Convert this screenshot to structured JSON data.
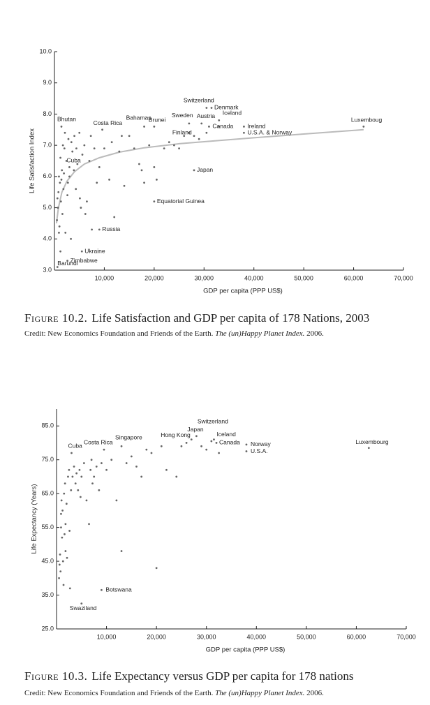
{
  "chart_data": [
    {
      "type": "scatter",
      "x_label": "GDP per capita (PPP US$)",
      "y_label": "Life Satisfaction Index",
      "caption_label": "Figure 10.2.",
      "caption": "Life Satisfaction and GDP per capita of 178 Nations, 2003",
      "credit": [
        "Credit: New Economics Foundation and Friends of the Earth. ",
        "The (un)Happy Planet Index.",
        " 2006."
      ],
      "xlim": [
        0,
        70000
      ],
      "ylim": [
        3,
        10
      ],
      "xticks": [
        {
          "value": 10000,
          "label": "10,000"
        },
        {
          "value": 20000,
          "label": "20,000"
        },
        {
          "value": 30000,
          "label": "30,000"
        },
        {
          "value": 40000,
          "label": "40,000"
        },
        {
          "value": 50000,
          "label": "50,000"
        },
        {
          "value": 60000,
          "label": "60,000"
        },
        {
          "value": 70000,
          "label": "70,000"
        }
      ],
      "yticks": [
        {
          "value": 3,
          "label": "3.0"
        },
        {
          "value": 4,
          "label": "4.0"
        },
        {
          "value": 5,
          "label": "5.0"
        },
        {
          "value": 6,
          "label": "6.0"
        },
        {
          "value": 7,
          "label": "7.0"
        },
        {
          "value": 8,
          "label": "8.0"
        },
        {
          "value": 9,
          "label": "9.0"
        },
        {
          "value": 10,
          "label": "10.0"
        }
      ],
      "color": "#666",
      "labeled_points": {
        "x": [
          1400,
          9600,
          18000,
          20000,
          30500,
          31500,
          27000,
          29500,
          33000,
          27000,
          31000,
          38000,
          38000,
          62000,
          3000,
          28000,
          20000,
          9000,
          5500,
          2600,
          600
        ],
        "y": [
          7.6,
          7.5,
          7.6,
          7.6,
          8.2,
          8.2,
          7.7,
          7.7,
          7.8,
          7.4,
          7.6,
          7.6,
          7.4,
          7.6,
          6.3,
          6.2,
          5.2,
          4.3,
          3.6,
          3.3,
          3.1
        ],
        "labels": [
          "Bhutan",
          "Costa Rica",
          "Bahamas",
          "Brunei",
          "Switzerland",
          "Denmark",
          "Sweden",
          "Austria",
          "Iceland",
          "Finland",
          "Canada",
          "Ireland",
          "U.S.A. & Norway",
          "Luxemboug",
          "Cuba",
          "Japan",
          "Equatorial Guinea",
          "Russia",
          "Ukraine",
          "Zimbabwe",
          "Barundi"
        ]
      },
      "points": {
        "x": [
          500,
          700,
          800,
          900,
          1000,
          1100,
          1200,
          1300,
          1500,
          1600,
          1700,
          1800,
          2000,
          2200,
          2400,
          2600,
          2800,
          3000,
          3300,
          3600,
          4000,
          4300,
          4600,
          5000,
          5300,
          5600,
          6000,
          6500,
          7000,
          7500,
          8000,
          8500,
          9000,
          10000,
          11000,
          12000,
          13000,
          14000,
          15000,
          16000,
          17000,
          18000,
          19000,
          20000,
          22000,
          24000,
          25000,
          28000,
          29000,
          33000,
          600,
          900,
          1200,
          1400,
          1900,
          2100,
          2700,
          3400,
          3900,
          4400,
          5100,
          6200,
          7300,
          11500,
          13500,
          17500,
          20500,
          23000,
          26000,
          30500
        ],
        "y": [
          4.6,
          5.0,
          5.5,
          6.0,
          4.4,
          5.8,
          6.6,
          5.2,
          6.2,
          4.8,
          7.0,
          5.6,
          6.9,
          4.2,
          6.5,
          5.4,
          7.2,
          6.0,
          4.0,
          6.8,
          7.3,
          5.6,
          6.4,
          7.4,
          5.0,
          6.7,
          7.0,
          5.2,
          6.5,
          4.3,
          6.9,
          5.8,
          6.3,
          6.9,
          5.9,
          4.7,
          6.8,
          5.7,
          7.3,
          6.9,
          6.4,
          5.8,
          7.0,
          6.3,
          6.9,
          7.0,
          6.9,
          7.3,
          7.2,
          7.6,
          5.3,
          4.2,
          3.6,
          5.9,
          6.1,
          7.4,
          5.8,
          7.1,
          6.2,
          6.9,
          5.3,
          4.8,
          7.3,
          7.1,
          7.3,
          6.2,
          5.9,
          7.1,
          7.3,
          7.4
        ]
      },
      "fit_line": {
        "color": "#bbbbbb",
        "x": [
          400,
          800,
          1500,
          2500,
          4000,
          6000,
          9000,
          13000,
          18000,
          25000,
          32000,
          40000,
          50000,
          62000
        ],
        "y": [
          4.5,
          5.0,
          5.5,
          5.85,
          6.15,
          6.4,
          6.6,
          6.78,
          6.92,
          7.05,
          7.14,
          7.24,
          7.36,
          7.5
        ]
      }
    },
    {
      "type": "scatter",
      "x_label": "GDP per capita (PPP US$)",
      "y_label": "Life Expectancy (Years)",
      "caption_label": "Figure 10.3.",
      "caption": "Life Expectancy versus GDP per capita for 178 nations",
      "credit": [
        "Credit: New Economics Foundation and Friends of the Earth. ",
        "The (un)Happy Planet Index.",
        " 2006."
      ],
      "xlim": [
        0,
        70000
      ],
      "ylim": [
        25,
        90
      ],
      "xticks": [
        {
          "value": 10000,
          "label": "10,000"
        },
        {
          "value": 20000,
          "label": "20,000"
        },
        {
          "value": 30000,
          "label": "30,000"
        },
        {
          "value": 40000,
          "label": "40,000"
        },
        {
          "value": 50000,
          "label": "50,000"
        },
        {
          "value": 60000,
          "label": "60,000"
        },
        {
          "value": 70000,
          "label": "70,000"
        }
      ],
      "yticks": [
        {
          "value": 25,
          "label": "25.0"
        },
        {
          "value": 35,
          "label": "35.0"
        },
        {
          "value": 45,
          "label": "45.0"
        },
        {
          "value": 55,
          "label": "55.0"
        },
        {
          "value": 65,
          "label": "65.0"
        },
        {
          "value": 75,
          "label": "75.0"
        },
        {
          "value": 85,
          "label": "85.0"
        }
      ],
      "color": "#666",
      "labeled_points": {
        "x": [
          3000,
          9500,
          13000,
          27000,
          28000,
          31000,
          31500,
          32000,
          38000,
          38000,
          62500,
          9000,
          5000
        ],
        "y": [
          77,
          78,
          79,
          81,
          82,
          80.5,
          81,
          80,
          79.5,
          77.5,
          78.5,
          36.5,
          32.5
        ],
        "labels": [
          "Cuba",
          "Costa Rica",
          "Singapore",
          "Hong Kong",
          "Japan",
          "Switzerland",
          "Iceland",
          "Canada",
          "Norway",
          "U.S.A.",
          "Luxembourg",
          "Botswana",
          "Swaziland"
        ]
      },
      "points": {
        "x": [
          500,
          600,
          700,
          800,
          900,
          1000,
          1100,
          1200,
          1300,
          1400,
          1500,
          1600,
          1700,
          1800,
          2000,
          2100,
          2300,
          2500,
          2700,
          2900,
          3200,
          3500,
          3800,
          4000,
          4300,
          4600,
          5000,
          5500,
          6000,
          6500,
          6800,
          7000,
          7500,
          8000,
          8500,
          9000,
          10000,
          11000,
          12000,
          13000,
          14000,
          15000,
          16000,
          17000,
          18000,
          19000,
          20000,
          21000,
          22000,
          24000,
          25000,
          26000,
          29000,
          30000,
          32500,
          900,
          1800,
          2600,
          4800,
          7200
        ],
        "y": [
          40,
          44,
          47,
          42,
          55,
          63,
          52,
          60,
          45,
          38,
          65,
          53,
          68,
          56,
          62,
          46,
          70,
          72,
          37,
          66,
          70,
          73,
          68,
          71,
          66,
          72,
          70,
          74,
          63,
          56,
          72,
          75,
          70,
          73,
          66,
          74,
          72,
          75,
          63,
          48,
          74,
          76,
          73,
          70,
          78,
          77,
          43,
          79,
          72,
          70,
          79,
          80,
          79,
          78,
          77,
          59,
          48,
          54,
          64,
          68
        ]
      }
    }
  ]
}
